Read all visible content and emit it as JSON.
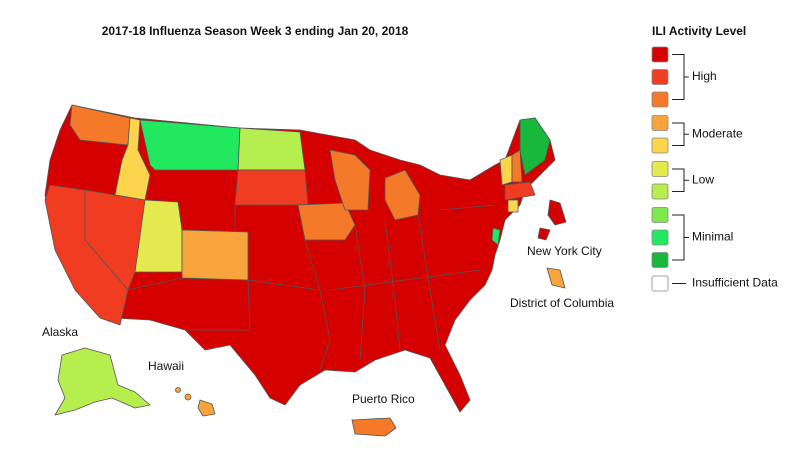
{
  "title": "2017-18 Influenza Season Week 3 ending Jan 20, 2018",
  "legend": {
    "title": "ILI Activity Level",
    "groups": [
      {
        "label": "High",
        "colors": [
          "#d50000",
          "#f03c20",
          "#f47a2a"
        ]
      },
      {
        "label": "Moderate",
        "colors": [
          "#f8a43c",
          "#fcd54d"
        ]
      },
      {
        "label": "Low",
        "colors": [
          "#e4ea4e",
          "#b7ee4f"
        ]
      },
      {
        "label": "Minimal",
        "colors": [
          "#7ee94e",
          "#22e860",
          "#18b83c"
        ]
      },
      {
        "label": "Insufficient Data",
        "colors": [
          "#ffffff"
        ]
      }
    ]
  },
  "map_labels": [
    "Alaska",
    "Hawaii",
    "Puerto Rico",
    "New York City",
    "District of Columbia"
  ]
}
